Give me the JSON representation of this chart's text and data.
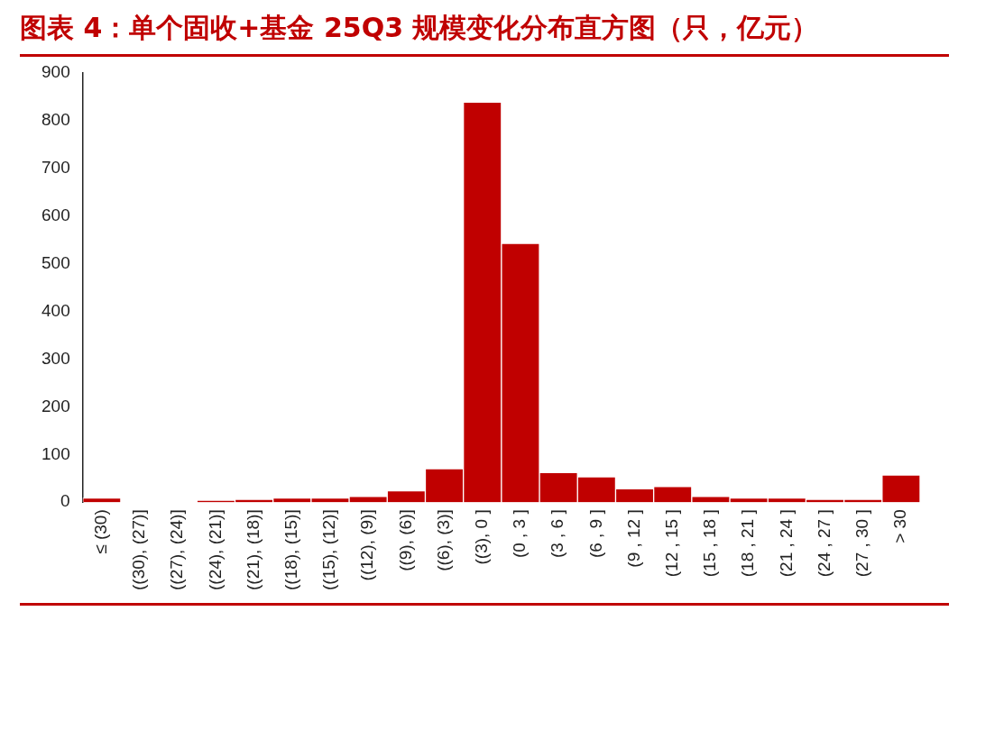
{
  "chart_data": {
    "type": "bar",
    "title": "图表 4：单个固收+基金 25Q3 规模变化分布直方图（只，亿元）",
    "categories": [
      "≤ (30)",
      "((30), (27)]",
      "((27), (24)]",
      "((24), (21)]",
      "((21), (18)]",
      "((18), (15)]",
      "((15), (12)]",
      "((12), (9)]",
      "((9), (6)]",
      "((6), (3)]",
      "((3), 0 ]",
      "(0 , 3 ]",
      "(3 , 6 ]",
      "(6 , 9 ]",
      "(9 , 12 ]",
      "(12 , 15 ]",
      "(15 , 18 ]",
      "(18 , 21 ]",
      "(21 , 24 ]",
      "(24 , 27 ]",
      "(27 , 30 ]",
      "> 30"
    ],
    "values": [
      9,
      0,
      0,
      4,
      6,
      9,
      9,
      12,
      24,
      70,
      838,
      542,
      62,
      53,
      28,
      33,
      12,
      9,
      9,
      6,
      6,
      57
    ],
    "color": "#c00000",
    "ylim": [
      0,
      900
    ],
    "yticks": [
      0,
      100,
      200,
      300,
      400,
      500,
      600,
      700,
      800,
      900
    ],
    "grid": false,
    "legend": false
  }
}
